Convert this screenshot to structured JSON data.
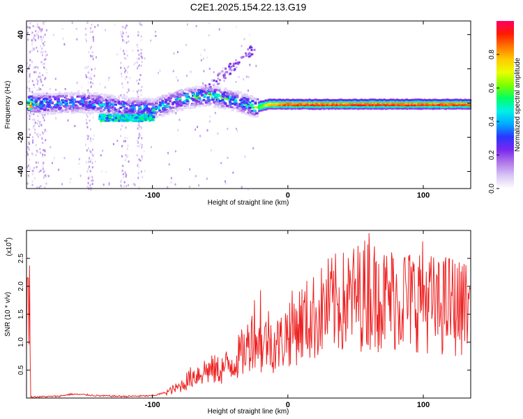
{
  "title": "C2E1.2025.154.22.13.G19",
  "chart_data": [
    {
      "type": "heatmap",
      "xlabel": "Height of straight line (km)",
      "ylabel": "Frequency (Hz)",
      "xlim": [
        -193,
        135
      ],
      "ylim": [
        -50,
        48
      ],
      "xticks": [
        -100,
        0,
        100
      ],
      "yticks": [
        -40,
        -20,
        0,
        20,
        40
      ],
      "colorbar": {
        "label": "Normalized spectral amplitude",
        "range": [
          0,
          1
        ],
        "ticks": [
          "0.0",
          "0.2",
          "0.4",
          "0.6",
          "0.8"
        ],
        "colors": [
          "#ffffff",
          "#d9c6f5",
          "#b07ae8",
          "#7a28f0",
          "#2a36ff",
          "#00aaff",
          "#00f0e8",
          "#00ff66",
          "#7bff00",
          "#e8ff00",
          "#ffcc00",
          "#ff7700",
          "#ff1a00",
          "#ff0066"
        ]
      },
      "ridge": [
        {
          "x": -190,
          "freq": 0,
          "amp": 0.45
        },
        {
          "x": -150,
          "freq": 1,
          "amp": 0.4
        },
        {
          "x": -120,
          "freq": -2,
          "amp": 0.38
        },
        {
          "x": -100,
          "freq": -3,
          "amp": 0.42
        },
        {
          "x": -80,
          "freq": 3,
          "amp": 0.45
        },
        {
          "x": -60,
          "freq": 5,
          "amp": 0.5
        },
        {
          "x": -40,
          "freq": 2,
          "amp": 0.45
        },
        {
          "x": -25,
          "freq": -2,
          "amp": 0.5
        },
        {
          "x": -15,
          "freq": 0,
          "amp": 0.8
        },
        {
          "x": 0,
          "freq": 0,
          "amp": 0.95
        },
        {
          "x": 50,
          "freq": 0,
          "amp": 0.95
        },
        {
          "x": 100,
          "freq": 0,
          "amp": 0.95
        },
        {
          "x": 135,
          "freq": 0,
          "amp": 0.95
        }
      ]
    },
    {
      "type": "line",
      "xlabel": "Height of straight line (km)",
      "ylabel": "SNR (10 * v/v)",
      "y_multiplier": "(x10",
      "y_multiplier_exp": "4",
      "xlim": [
        -193,
        135
      ],
      "ylim": [
        0,
        3.0
      ],
      "xticks": [
        -100,
        0,
        100
      ],
      "yticks": [
        "0.5",
        "1.0",
        "1.5",
        "2.0",
        "2.5"
      ],
      "line_color": "#ee2222",
      "series": [
        {
          "x": [
            -190,
            -170,
            -160,
            -150,
            -140,
            -120,
            -100,
            -90,
            -80,
            -75,
            -70,
            -60,
            -50,
            -40,
            -30,
            -25,
            -20,
            -15,
            -10,
            -5,
            0,
            10,
            20,
            30,
            40,
            50,
            60,
            70,
            80,
            90,
            100,
            110,
            120,
            130,
            135
          ],
          "y": [
            0.02,
            0.03,
            0.07,
            0.06,
            0.04,
            0.03,
            0.04,
            0.1,
            0.2,
            0.3,
            0.4,
            0.5,
            0.5,
            0.65,
            0.9,
            1.25,
            0.85,
            1.1,
            0.95,
            1.0,
            1.2,
            1.35,
            1.45,
            1.65,
            1.7,
            1.8,
            1.9,
            1.75,
            1.8,
            1.75,
            1.85,
            1.6,
            1.7,
            1.55,
            1.7
          ],
          "peaks": [
            {
              "x": -20,
              "y": 1.93
            },
            {
              "x": 48,
              "y": 2.45
            },
            {
              "x": 60,
              "y": 2.95
            },
            {
              "x": 67,
              "y": 2.4
            },
            {
              "x": 77,
              "y": 2.5
            },
            {
              "x": 86,
              "y": 2.5
            },
            {
              "x": 98,
              "y": 2.3
            },
            {
              "x": 115,
              "y": 2.45
            },
            {
              "x": 130,
              "y": 2.4
            }
          ]
        }
      ]
    }
  ]
}
